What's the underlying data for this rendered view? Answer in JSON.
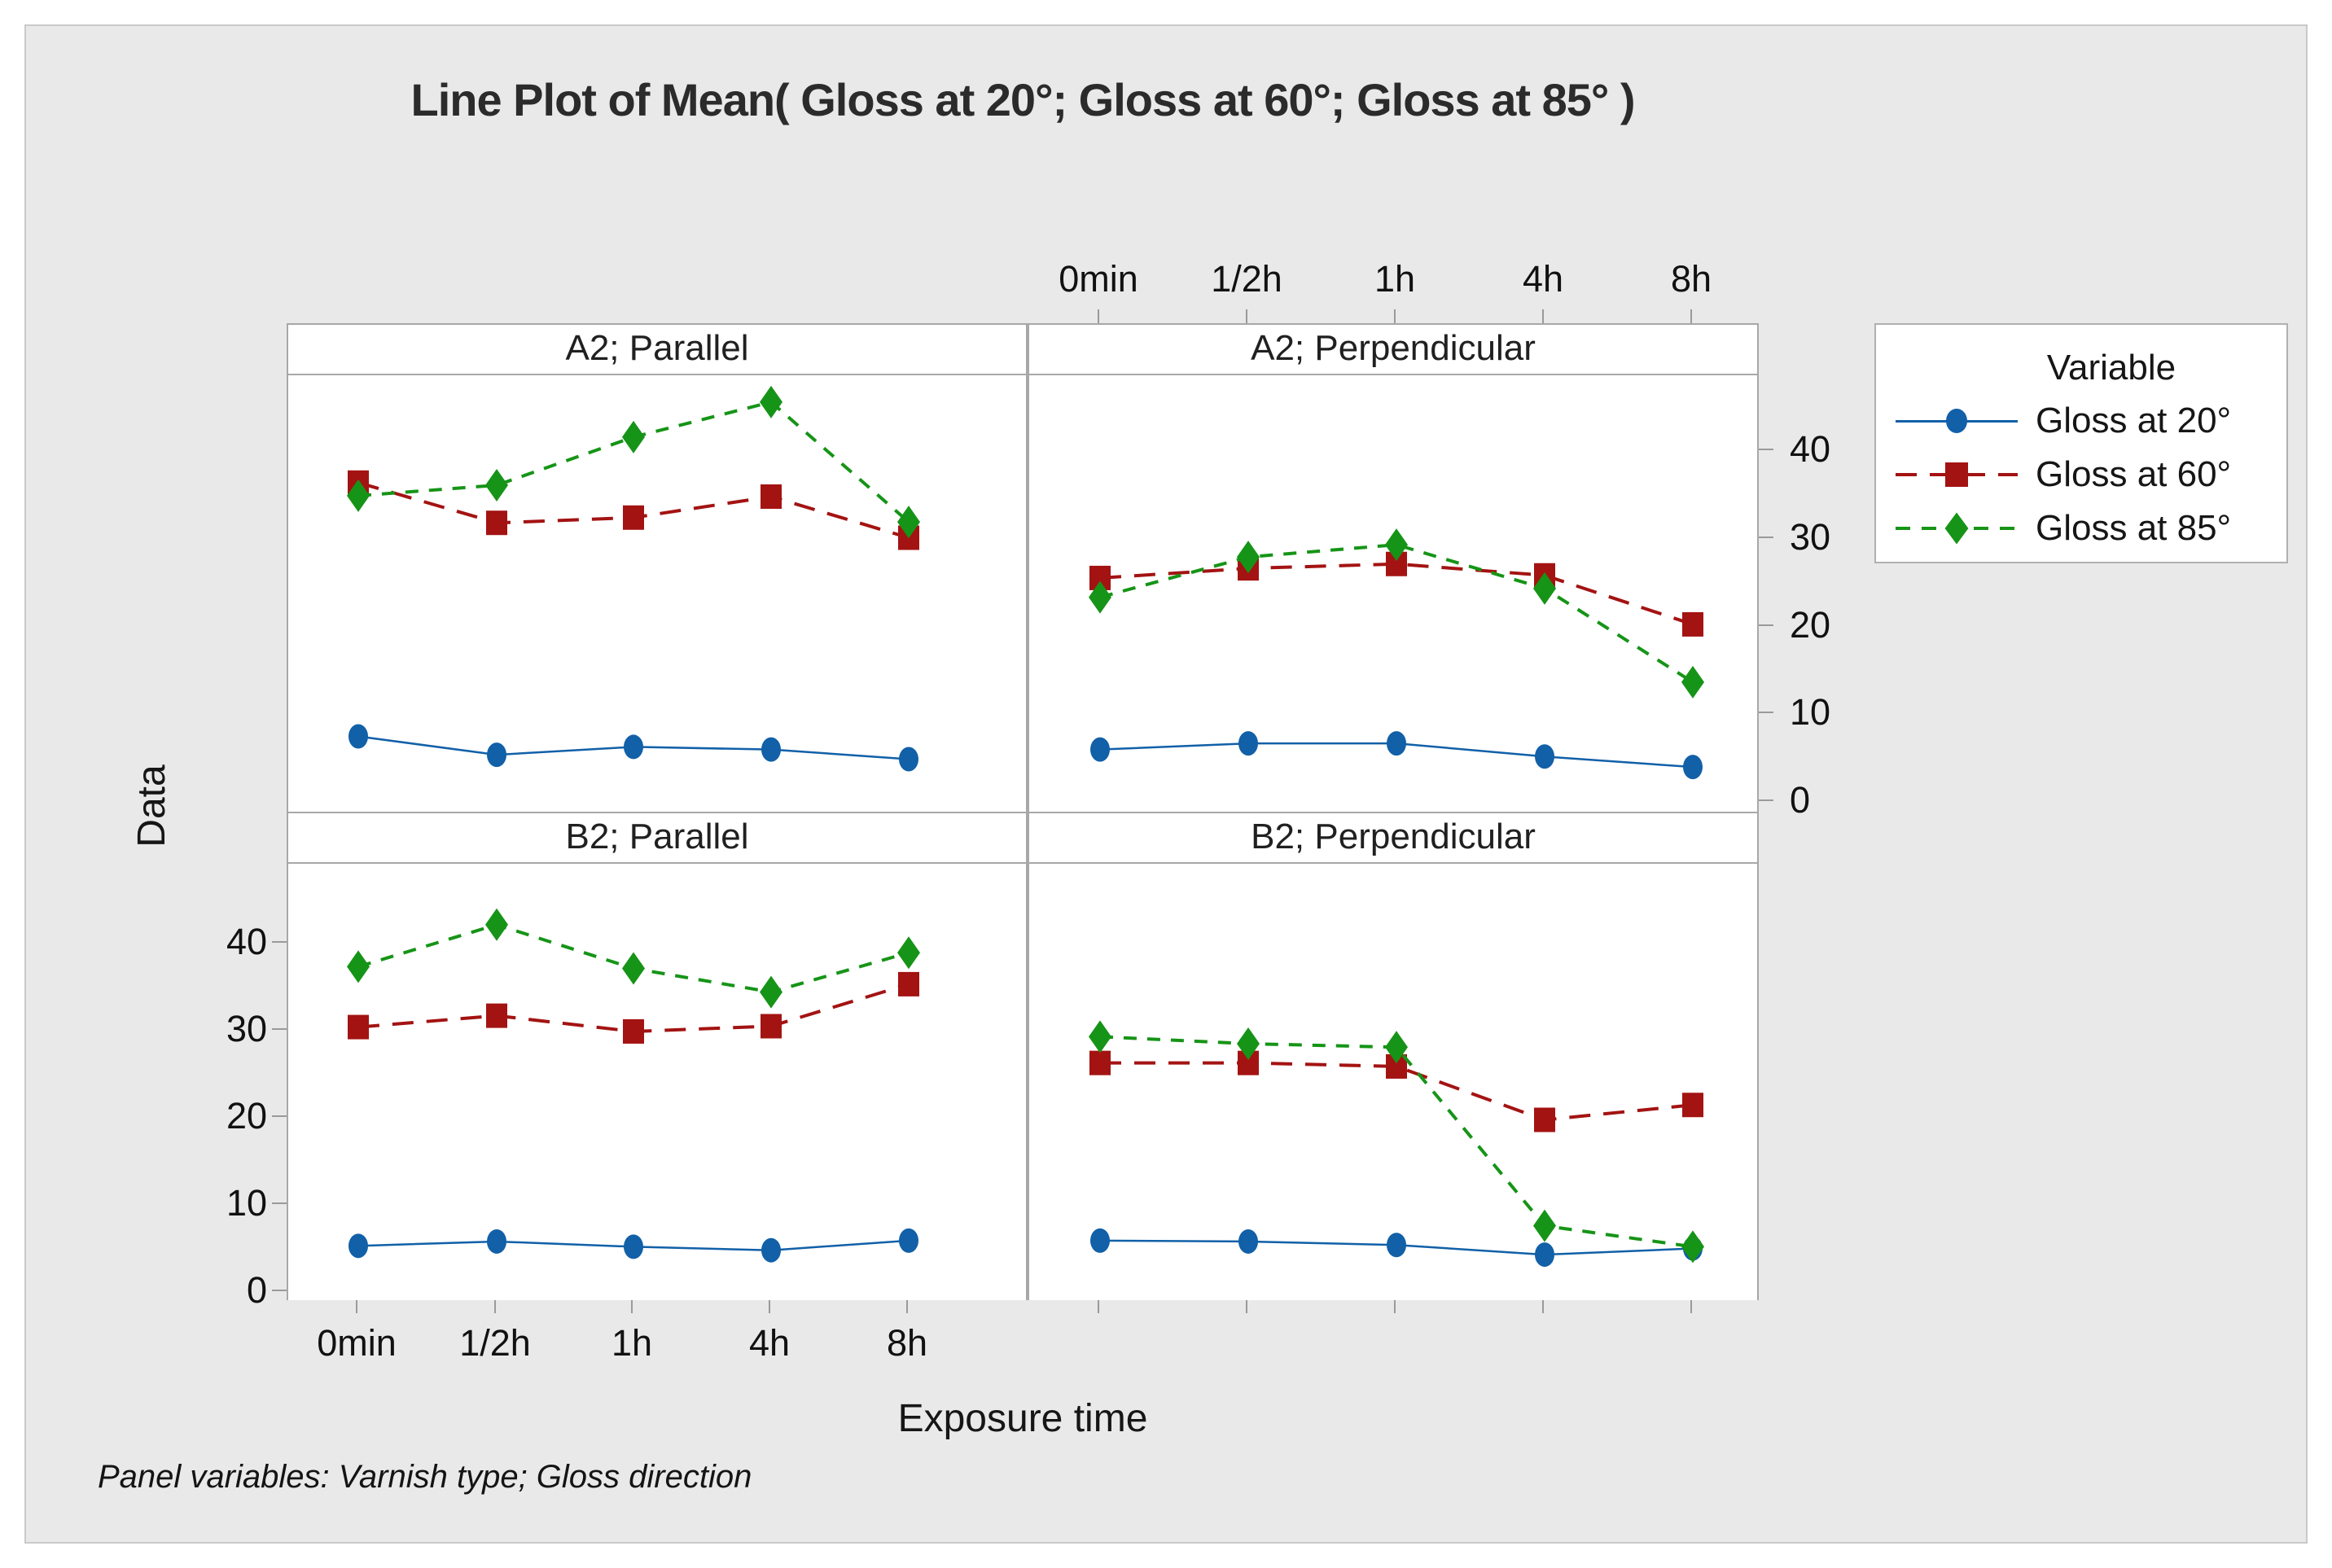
{
  "title": "Line Plot of Mean( Gloss at 20°; Gloss at 60°; Gloss at 85° )",
  "footnote": "Panel variables: Varnish type; Gloss direction",
  "axis": {
    "x_title": "Exposure time",
    "y_title": "Data",
    "x_tick_labels": [
      "0min",
      "1/2h",
      "1h",
      "4h",
      "8h"
    ],
    "y_tick_values": [
      0,
      10,
      20,
      30,
      40
    ],
    "ylim": [
      0,
      48
    ],
    "grid": false
  },
  "legend": {
    "title": "Variable",
    "position": "right",
    "entries": [
      {
        "label": "Gloss at 20°",
        "color": "#1160a8",
        "marker": "circle",
        "linestyle": "solid"
      },
      {
        "label": "Gloss at 60°",
        "color": "#a31312",
        "marker": "square",
        "linestyle": "long-dash"
      },
      {
        "label": "Gloss at 85°",
        "color": "#169417",
        "marker": "diamond",
        "linestyle": "dash"
      }
    ]
  },
  "colors": {
    "gloss20": "#1160a8",
    "gloss60": "#a31312",
    "gloss85": "#169417",
    "frame": "#a8a8a8",
    "background": "#e9e9e9"
  },
  "chart_data": [
    {
      "type": "line",
      "title": "A2; Parallel",
      "categories": [
        "0min",
        "1/2h",
        "1h",
        "4h",
        "8h"
      ],
      "series": [
        {
          "name": "Gloss at 20°",
          "values": [
            7.3,
            5.2,
            6.1,
            5.8,
            4.7
          ]
        },
        {
          "name": "Gloss at 60°",
          "values": [
            36.3,
            31.7,
            32.3,
            34.7,
            30.0
          ]
        },
        {
          "name": "Gloss at 85°",
          "values": [
            34.8,
            36.0,
            41.5,
            45.5,
            31.8
          ]
        }
      ]
    },
    {
      "type": "line",
      "title": "A2; Perpendicular",
      "categories": [
        "0min",
        "1/2h",
        "1h",
        "4h",
        "8h"
      ],
      "series": [
        {
          "name": "Gloss at 20°",
          "values": [
            5.8,
            6.5,
            6.5,
            5.0,
            3.8
          ]
        },
        {
          "name": "Gloss at 60°",
          "values": [
            25.4,
            26.5,
            27.0,
            25.7,
            20.1
          ]
        },
        {
          "name": "Gloss at 85°",
          "values": [
            23.2,
            27.8,
            29.2,
            24.2,
            13.5
          ]
        }
      ]
    },
    {
      "type": "line",
      "title": "B2; Parallel",
      "categories": [
        "0min",
        "1/2h",
        "1h",
        "4h",
        "8h"
      ],
      "series": [
        {
          "name": "Gloss at 20°",
          "values": [
            4.9,
            5.4,
            4.8,
            4.4,
            5.5
          ]
        },
        {
          "name": "Gloss at 60°",
          "values": [
            29.9,
            31.2,
            29.4,
            30.0,
            34.8
          ]
        },
        {
          "name": "Gloss at 85°",
          "values": [
            36.8,
            41.6,
            36.6,
            33.9,
            38.4
          ]
        }
      ]
    },
    {
      "type": "line",
      "title": "B2; Perpendicular",
      "categories": [
        "0min",
        "1/2h",
        "1h",
        "4h",
        "8h"
      ],
      "series": [
        {
          "name": "Gloss at 20°",
          "values": [
            5.5,
            5.4,
            5.0,
            3.9,
            4.6
          ]
        },
        {
          "name": "Gloss at 60°",
          "values": [
            25.8,
            25.8,
            25.4,
            19.3,
            21.0
          ]
        },
        {
          "name": "Gloss at 85°",
          "values": [
            28.8,
            28.0,
            27.6,
            7.2,
            4.8
          ]
        }
      ]
    }
  ]
}
